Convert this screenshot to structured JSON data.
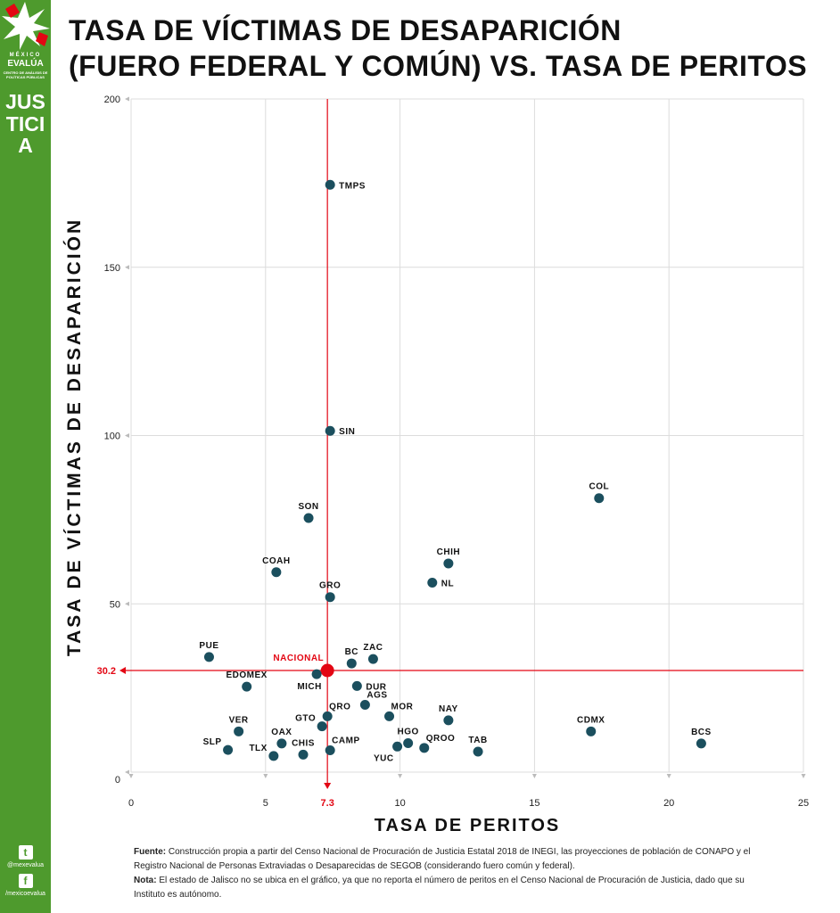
{
  "sidebar": {
    "brand_small": "MÉXICO",
    "brand_main": "EVALÚA",
    "brand_sub": "CENTRO DE ANÁLISIS DE POLÍTICAS PÚBLICAS",
    "section": "JUSTICIA",
    "twitter_handle": "@mexevalua",
    "facebook_handle": "/mexicoevalua",
    "color": "#4e9a2d"
  },
  "title": {
    "line1": "TASA DE VÍCTIMAS DE DESAPARICIÓN",
    "line2": "(FUERO FEDERAL Y COMÚN) VS. TASA DE PERITOS"
  },
  "chart_data": {
    "type": "scatter",
    "xlabel": "TASA DE PERITOS",
    "ylabel": "TASA DE VÍCTIMAS DE DESAPARICIÓN",
    "xlim": [
      0,
      25
    ],
    "ylim": [
      0,
      200
    ],
    "xticks": [
      0,
      5,
      10,
      15,
      20,
      25
    ],
    "yticks": [
      0,
      50,
      100,
      150,
      200
    ],
    "grid": true,
    "point_color": "#1b4f5e",
    "reference_color": "#e30613",
    "reference": {
      "label": "NACIONAL",
      "x": 7.3,
      "y": 30.2,
      "x_label": "7.3",
      "y_label": "30.2"
    },
    "points": [
      {
        "label": "TMPS",
        "x": 7.4,
        "y": 174.5
      },
      {
        "label": "SIN",
        "x": 7.4,
        "y": 101.4
      },
      {
        "label": "COL",
        "x": 17.4,
        "y": 81.4
      },
      {
        "label": "SON",
        "x": 6.6,
        "y": 75.5
      },
      {
        "label": "CHIH",
        "x": 11.8,
        "y": 62.0
      },
      {
        "label": "COAH",
        "x": 5.4,
        "y": 59.4
      },
      {
        "label": "NL",
        "x": 11.2,
        "y": 56.3
      },
      {
        "label": "GRO",
        "x": 7.4,
        "y": 52.0
      },
      {
        "label": "PUE",
        "x": 2.9,
        "y": 34.2
      },
      {
        "label": "ZAC",
        "x": 9.0,
        "y": 33.6
      },
      {
        "label": "BC",
        "x": 8.2,
        "y": 32.3
      },
      {
        "label": "MICH",
        "x": 6.9,
        "y": 29.1
      },
      {
        "label": "EDOMEX",
        "x": 4.3,
        "y": 25.4
      },
      {
        "label": "DUR",
        "x": 8.4,
        "y": 25.6
      },
      {
        "label": "AGS",
        "x": 8.7,
        "y": 20.0
      },
      {
        "label": "QRO",
        "x": 7.3,
        "y": 16.6
      },
      {
        "label": "MOR",
        "x": 9.6,
        "y": 16.6
      },
      {
        "label": "NAY",
        "x": 11.8,
        "y": 15.4
      },
      {
        "label": "GTO",
        "x": 7.1,
        "y": 13.6
      },
      {
        "label": "CDMX",
        "x": 17.1,
        "y": 12.1
      },
      {
        "label": "BCS",
        "x": 21.2,
        "y": 8.5
      },
      {
        "label": "VER",
        "x": 4.0,
        "y": 12.1
      },
      {
        "label": "OAX",
        "x": 5.6,
        "y": 8.5
      },
      {
        "label": "HGO",
        "x": 10.3,
        "y": 8.6
      },
      {
        "label": "QROO",
        "x": 10.9,
        "y": 7.2
      },
      {
        "label": "YUC",
        "x": 9.9,
        "y": 7.6
      },
      {
        "label": "SLP",
        "x": 3.6,
        "y": 6.6
      },
      {
        "label": "CAMP",
        "x": 7.4,
        "y": 6.5
      },
      {
        "label": "TAB",
        "x": 12.9,
        "y": 6.1
      },
      {
        "label": "CHIS",
        "x": 6.4,
        "y": 5.2
      },
      {
        "label": "TLX",
        "x": 5.3,
        "y": 4.8
      }
    ]
  },
  "footnote": {
    "fuente_label": "Fuente:",
    "fuente_text": " Construcción propia a partir del Censo Nacional de Procuración de Justicia Estatal 2018 de INEGI, las proyecciones de población de CONAPO y el Registro Nacional de Personas Extraviadas o Desaparecidas de SEGOB (considerando fuero común y federal).",
    "nota_label": "Nota:",
    "nota_text": " El estado de Jalisco no se ubica en el gráfico, ya que no reporta el número de peritos en el Censo Nacional de Procuración de Justicia, dado que su Instituto es autónomo."
  }
}
